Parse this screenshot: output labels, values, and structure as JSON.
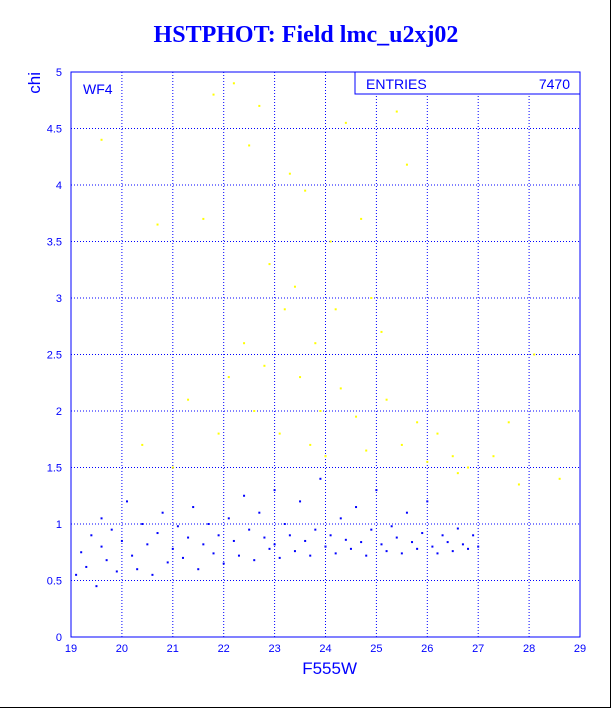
{
  "title": "HSTPHOT: Field lmc_u2xj02",
  "colors": {
    "axis": "#0000ff",
    "grid": "#0000ff",
    "background": "#ffffff",
    "dots_blue": "#0000ff",
    "dots_yellow": "#ffff00"
  },
  "chart_data": {
    "type": "scatter",
    "title": "HSTPHOT: Field lmc_u2xj02",
    "xlabel": "F555W",
    "ylabel": "chi",
    "xlim": [
      19,
      29
    ],
    "ylim": [
      0,
      5
    ],
    "xticks": [
      "19",
      "20",
      "21",
      "22",
      "23",
      "24",
      "25",
      "26",
      "27",
      "28",
      "29"
    ],
    "yticks": [
      "0",
      "0.5",
      "1",
      "1.5",
      "2",
      "2.5",
      "3",
      "3.5",
      "4",
      "4.5",
      "5"
    ],
    "grid": true,
    "panel_label": "WF4",
    "stats_box": {
      "label": "ENTRIES",
      "value": "7470"
    },
    "series": [
      {
        "color": "#0000ff",
        "points": [
          [
            19.1,
            0.55
          ],
          [
            19.2,
            0.75
          ],
          [
            19.3,
            0.62
          ],
          [
            19.4,
            0.9
          ],
          [
            19.5,
            0.45
          ],
          [
            19.6,
            0.8
          ],
          [
            19.6,
            1.05
          ],
          [
            19.7,
            0.68
          ],
          [
            19.8,
            0.95
          ],
          [
            19.9,
            0.58
          ],
          [
            20.0,
            0.85
          ],
          [
            20.1,
            1.2
          ],
          [
            20.2,
            0.72
          ],
          [
            20.3,
            0.6
          ],
          [
            20.4,
            1.0
          ],
          [
            20.5,
            0.82
          ],
          [
            20.6,
            0.55
          ],
          [
            20.7,
            0.92
          ],
          [
            20.8,
            1.1
          ],
          [
            20.9,
            0.66
          ],
          [
            21.0,
            0.78
          ],
          [
            21.1,
            0.98
          ],
          [
            21.2,
            0.7
          ],
          [
            21.3,
            0.88
          ],
          [
            21.4,
            1.15
          ],
          [
            21.5,
            0.6
          ],
          [
            21.6,
            0.82
          ],
          [
            21.7,
            1.0
          ],
          [
            21.8,
            0.74
          ],
          [
            21.9,
            0.9
          ],
          [
            22.0,
            0.65
          ],
          [
            22.1,
            1.05
          ],
          [
            22.2,
            0.85
          ],
          [
            22.3,
            0.72
          ],
          [
            22.4,
            1.25
          ],
          [
            22.5,
            0.95
          ],
          [
            22.6,
            0.68
          ],
          [
            22.7,
            1.1
          ],
          [
            22.8,
            0.88
          ],
          [
            22.9,
            0.78
          ],
          [
            23.0,
            1.3
          ],
          [
            23.0,
            0.82
          ],
          [
            23.1,
            0.7
          ],
          [
            23.2,
            1.0
          ],
          [
            23.3,
            0.9
          ],
          [
            23.4,
            0.76
          ],
          [
            23.5,
            1.2
          ],
          [
            23.6,
            0.85
          ],
          [
            23.7,
            0.72
          ],
          [
            23.8,
            0.95
          ],
          [
            23.9,
            1.4
          ],
          [
            24.0,
            0.8
          ],
          [
            24.1,
            0.9
          ],
          [
            24.2,
            0.74
          ],
          [
            24.3,
            1.05
          ],
          [
            24.4,
            0.86
          ],
          [
            24.5,
            0.78
          ],
          [
            24.6,
            1.15
          ],
          [
            24.7,
            0.84
          ],
          [
            24.8,
            0.72
          ],
          [
            24.9,
            0.95
          ],
          [
            25.0,
            1.3
          ],
          [
            25.1,
            0.82
          ],
          [
            25.2,
            0.76
          ],
          [
            25.3,
            0.98
          ],
          [
            25.4,
            0.88
          ],
          [
            25.5,
            0.74
          ],
          [
            25.6,
            1.1
          ],
          [
            25.7,
            0.84
          ],
          [
            25.8,
            0.78
          ],
          [
            25.9,
            0.92
          ],
          [
            26.0,
            1.2
          ],
          [
            26.1,
            0.8
          ],
          [
            26.2,
            0.74
          ],
          [
            26.3,
            0.9
          ],
          [
            26.4,
            0.84
          ],
          [
            26.5,
            0.76
          ],
          [
            26.6,
            0.96
          ],
          [
            26.7,
            0.82
          ],
          [
            26.8,
            0.78
          ],
          [
            26.9,
            0.9
          ],
          [
            27.0,
            0.8
          ]
        ]
      },
      {
        "color": "#ffff00",
        "points": [
          [
            19.6,
            4.4
          ],
          [
            20.7,
            3.65
          ],
          [
            21.6,
            3.7
          ],
          [
            21.8,
            4.8
          ],
          [
            22.2,
            4.9
          ],
          [
            22.5,
            4.35
          ],
          [
            22.7,
            4.7
          ],
          [
            23.3,
            4.1
          ],
          [
            23.6,
            3.95
          ],
          [
            24.1,
            3.5
          ],
          [
            24.4,
            4.55
          ],
          [
            24.7,
            3.7
          ],
          [
            25.4,
            4.65
          ],
          [
            25.6,
            4.18
          ],
          [
            22.9,
            3.3
          ],
          [
            23.2,
            2.9
          ],
          [
            23.4,
            3.1
          ],
          [
            23.8,
            2.6
          ],
          [
            24.2,
            2.9
          ],
          [
            24.9,
            3.0
          ],
          [
            25.1,
            2.7
          ],
          [
            22.4,
            2.6
          ],
          [
            22.8,
            2.4
          ],
          [
            23.5,
            2.3
          ],
          [
            23.9,
            2.0
          ],
          [
            24.3,
            2.2
          ],
          [
            24.6,
            1.95
          ],
          [
            25.2,
            2.1
          ],
          [
            25.8,
            1.9
          ],
          [
            26.2,
            1.8
          ],
          [
            26.5,
            1.6
          ],
          [
            26.8,
            1.5
          ],
          [
            27.3,
            1.6
          ],
          [
            27.8,
            1.35
          ],
          [
            28.6,
            1.4
          ],
          [
            28.1,
            2.5
          ],
          [
            27.6,
            1.9
          ],
          [
            21.3,
            2.1
          ],
          [
            21.9,
            1.8
          ],
          [
            22.6,
            2.0
          ],
          [
            23.1,
            1.8
          ],
          [
            23.7,
            1.7
          ],
          [
            24.0,
            1.6
          ],
          [
            24.8,
            1.65
          ],
          [
            25.5,
            1.7
          ],
          [
            26.0,
            1.55
          ],
          [
            26.6,
            1.45
          ],
          [
            21.0,
            1.5
          ],
          [
            20.4,
            1.7
          ],
          [
            22.1,
            2.3
          ]
        ]
      }
    ]
  }
}
